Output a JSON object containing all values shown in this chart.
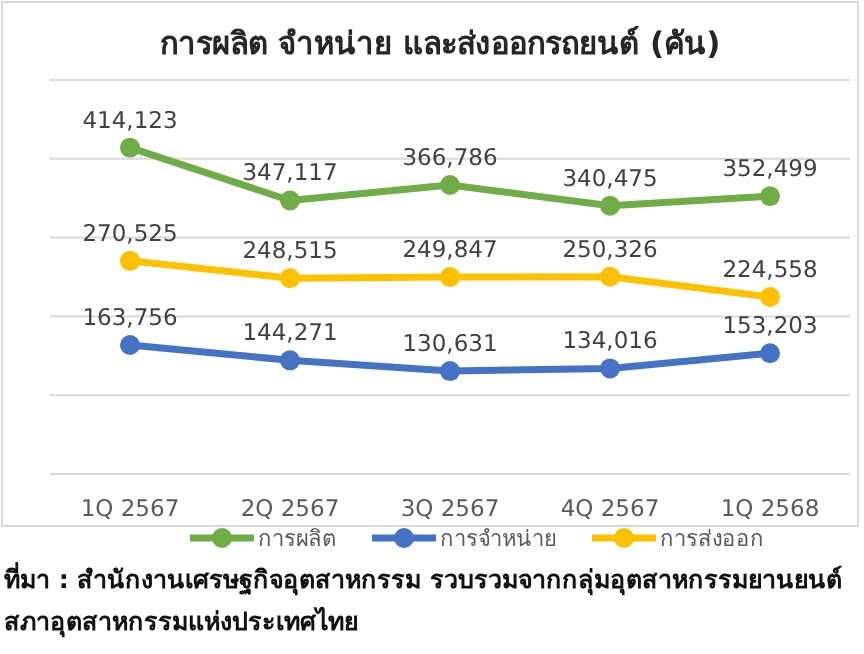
{
  "chart_data": {
    "type": "line",
    "title": "การผลิต จำหน่าย และส่งออกรถยนต์ (คัน)",
    "categories": [
      "1Q 2567",
      "2Q 2567",
      "3Q 2567",
      "4Q 2567",
      "1Q 2568"
    ],
    "series": [
      {
        "name": "การผลิต",
        "color": "#70ad47",
        "values": [
          414123,
          347117,
          366786,
          340475,
          352499
        ],
        "value_labels": [
          "414,123",
          "347,117",
          "366,786",
          "340,475",
          "352,499"
        ]
      },
      {
        "name": "การจำหน่าย",
        "color": "#4472c4",
        "values": [
          163756,
          144271,
          130631,
          134016,
          153203
        ],
        "value_labels": [
          "163,756",
          "144,271",
          "130,631",
          "134,016",
          "153,203"
        ]
      },
      {
        "name": "การส่งออก",
        "color": "#ffc000",
        "values": [
          270525,
          248515,
          249847,
          250326,
          224558
        ],
        "value_labels": [
          "270,525",
          "248,515",
          "249,847",
          "250,326",
          "224,558"
        ]
      }
    ],
    "tick_labels": "x",
    "grid": "y",
    "legend": "bottom",
    "marker": "circle",
    "line_style": "solid",
    "annotations": [
      "ที่มา : สำนักงานเศรษฐกิจอุตสาหกรรม รวบรวมจากกลุ่มอุตสาหกรรมยานยนต์ สภาอุตสาหกรรมแห่งประเทศไทย"
    ]
  }
}
